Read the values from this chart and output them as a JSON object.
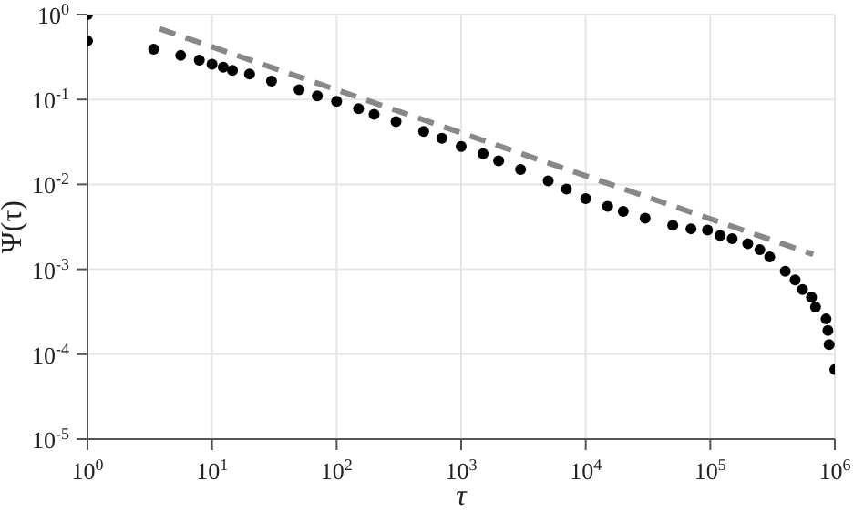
{
  "chart_data": {
    "type": "scatter",
    "xlabel": "τ",
    "ylabel": "Ψ(τ)",
    "log": "xy",
    "grid": true,
    "xlim": [
      1,
      1000000
    ],
    "ylim": [
      1e-05,
      1
    ],
    "xticks": [
      {
        "value": 1,
        "label": "10$^{0}$"
      },
      {
        "value": 10,
        "label": "10$^{1}$"
      },
      {
        "value": 100,
        "label": "10$^{2}$"
      },
      {
        "value": 1000,
        "label": "10$^{3}$"
      },
      {
        "value": 10000,
        "label": "10$^{4}$"
      },
      {
        "value": 100000,
        "label": "10$^{5}$"
      },
      {
        "value": 1000000,
        "label": "10$^{6}$"
      }
    ],
    "yticks": [
      {
        "value": 1e-05,
        "label": "10$^{-5}$"
      },
      {
        "value": 0.0001,
        "label": "10$^{-4}$"
      },
      {
        "value": 0.001,
        "label": "10$^{-3}$"
      },
      {
        "value": 0.01,
        "label": "10$^{-2}$"
      },
      {
        "value": 0.1,
        "label": "10$^{-1}$"
      },
      {
        "value": 1,
        "label": "10$^{0}$"
      }
    ],
    "series": [
      {
        "type": "scatter",
        "color": "#000000",
        "marker": "circle",
        "x": [
          1,
          1,
          3.4,
          5.6,
          7.9,
          10,
          12.3,
          14.6,
          20,
          30,
          50,
          70,
          100,
          150,
          200,
          300,
          500,
          700,
          1000,
          1500,
          2000,
          3000,
          5000,
          7000,
          10000,
          15000,
          20000,
          30000,
          50000,
          70000,
          95000,
          120000,
          150000,
          200000,
          250000,
          300000,
          400000,
          480000,
          550000,
          650000,
          700000,
          850000,
          880000,
          900000,
          1000000
        ],
        "values": [
          1,
          0.49,
          0.39,
          0.33,
          0.29,
          0.26,
          0.24,
          0.22,
          0.2,
          0.165,
          0.13,
          0.11,
          0.095,
          0.078,
          0.067,
          0.055,
          0.042,
          0.035,
          0.028,
          0.023,
          0.019,
          0.015,
          0.011,
          0.0088,
          0.0068,
          0.0055,
          0.0048,
          0.004,
          0.0033,
          0.003,
          0.0029,
          0.0025,
          0.0023,
          0.002,
          0.0017,
          0.0014,
          0.00095,
          0.00075,
          0.00058,
          0.00047,
          0.00036,
          0.00026,
          0.00019,
          0.00013,
          6.6e-05
        ]
      },
      {
        "type": "line",
        "color": "#888888",
        "line_style": "dashed",
        "marker": "none",
        "x": [
          3.8,
          670000
        ],
        "values": [
          0.68,
          0.0015
        ]
      }
    ]
  }
}
